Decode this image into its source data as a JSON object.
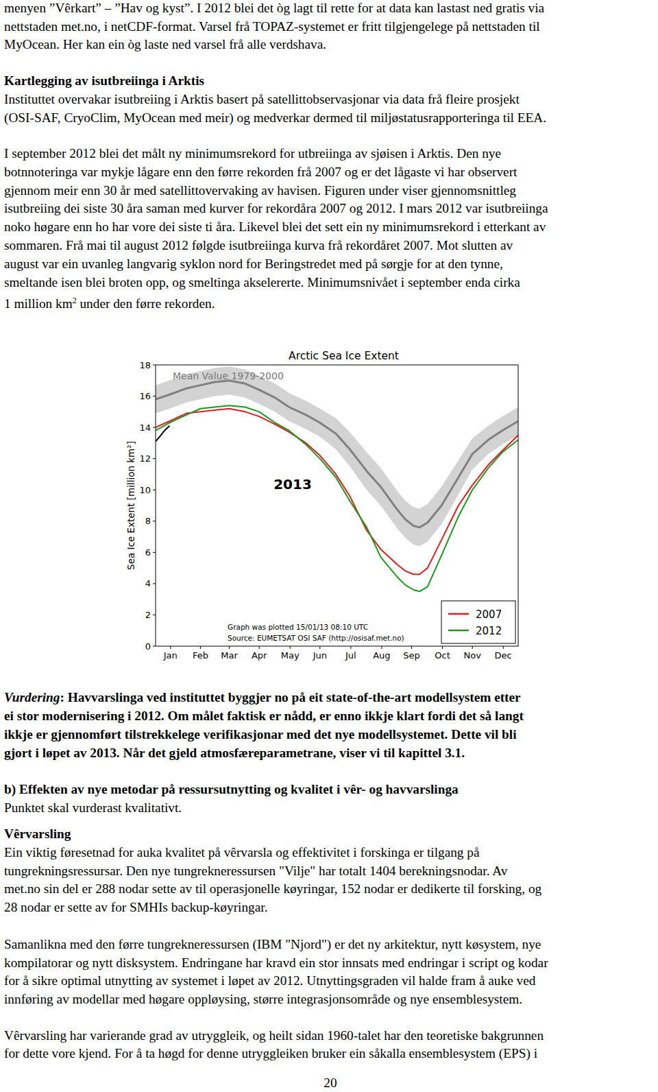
{
  "document": {
    "paragraph_1": {
      "lines": [
        "menyen ”Vêrkart” – ”Hav og kyst”. I 2012 blei det òg lagt til rette for at data kan lastast ned gratis via",
        "nettstaden met.no, i netCDF-format. Varsel frå TOPAZ-systemet er fritt tilgjengelege på nettstaden til",
        "MyOcean. Her kan ein òg laste ned varsel frå alle verdshava."
      ]
    },
    "section": {
      "heading": "Kartlegging av isutbreiinga i Arktis",
      "paragraphs": [
        {
          "lines": [
            "Instituttet overvakar isutbreiing i Arktis basert på satellittobservasjonar via data frå fleire prosjekt",
            "(OSI-SAF, CryoClim, MyOcean med meir) og medverkar dermed til miljøstatusrapporteringa til EEA."
          ]
        },
        {
          "lines": [
            "I september 2012 blei det målt ny minimumsrekord for utbreiinga av sjøisen i Arktis. Den nye",
            "botnnoteringa var mykje lågare enn den førre rekorden frå 2007 og er det lågaste vi har observert",
            "gjennom meir enn 30 år med satellittovervaking av havisen. Figuren under viser gjennomsnittleg",
            "isutbreiing dei siste 30 åra saman med kurver for rekordåra 2007 og 2012. I mars 2012 var isutbreiinga",
            "noko høgare enn ho har vore dei siste ti åra. Likevel blei det sett ein ny minimumsrekord i etterkant av",
            "sommaren. Frå mai til august 2012 følgde isutbreiinga kurva frå rekordåret 2007. Mot slutten av",
            "august var ein uvanleg langvarig syklon nord for Beringstredet med på sørgje for at den tynne,",
            "smeltande isen blei broten opp, og smeltinga akselererte. Minimumsnivået i september enda cirka"
          ],
          "last_line": {
            "text": "1 million km",
            "sup": "2",
            "after": " under den førre rekorden."
          }
        }
      ]
    },
    "assessment": {
      "label": "Vurdering",
      "lines": [
        ": Havvarslinga ved instituttet byggjer no på eit state-of-the-art modellsystem etter",
        "ei stor modernisering i 2012. Om målet faktisk er nådd, er enno ikkje klart fordi det så langt",
        "ikkje er gjennomført tilstrekkelege verifikasjonar med det nye modellsystemet. Dette vil bli",
        "gjort i løpet av 2013. Når det gjeld atmosfæreparametrane, viser vi til kapittel 3.1."
      ]
    },
    "subsection": {
      "heading": "b) Effekten av nye metodar på ressursutnytting og kvalitet i vêr- og havvarslinga",
      "note": "Punktet skal vurderast kvalitativt.",
      "subheading": "Vêrvarsling",
      "paragraphs": [
        {
          "lines": [
            "Ein viktig føresetnad for auka kvalitet på vêrvarsla og effektivitet i forskinga er tilgang på",
            "tungrekningsressursar. Den nye tungrekneressursen \"Vilje\" har totalt 1404 berekningsnodar. Av",
            "met.no sin del er 288 nodar sette av til operasjonelle køyringar, 152 nodar er dedikerte til forsking, og",
            "28 nodar er sette av for SMHIs backup-køyringar."
          ]
        },
        {
          "lines": [
            "Samanlikna med den førre tungrekneressursen (IBM \"Njord\") er det ny arkitektur, nytt køsystem, nye",
            "kompilatorar og nytt disksystem. Endringane har kravd ein stor innsats med endringar i script og kodar",
            "for å sikre optimal utnytting av systemet i løpet av 2012. Utnyttingsgraden vil halde fram å auke ved",
            "innføring av modellar med høgare oppløysing, større integrasjonsområde og nye ensemblesystem."
          ]
        },
        {
          "lines": [
            "Vêrvarsling har varierande grad av utryggleik, og heilt sidan 1960-talet har den teoretiske bakgrunnen",
            "for dette vore kjend. For å ta høgd for denne utryggleiken bruker ein såkalla ensemblesystem (EPS) i"
          ]
        }
      ]
    },
    "page_number": "20"
  },
  "chart_data": {
    "type": "line",
    "title": "Arctic Sea Ice Extent",
    "ylabel": "Sea Ice Extent [million km²]",
    "xlim": [
      1,
      365
    ],
    "xticks": [
      {
        "value": 16,
        "label": "Jan"
      },
      {
        "value": 46,
        "label": "Feb"
      },
      {
        "value": 75,
        "label": "Mar"
      },
      {
        "value": 105,
        "label": "Apr"
      },
      {
        "value": 136,
        "label": "May"
      },
      {
        "value": 166,
        "label": "Jun"
      },
      {
        "value": 197,
        "label": "Jul"
      },
      {
        "value": 228,
        "label": "Aug"
      },
      {
        "value": 258,
        "label": "Sep"
      },
      {
        "value": 289,
        "label": "Oct"
      },
      {
        "value": 319,
        "label": "Nov"
      },
      {
        "value": 350,
        "label": "Dec"
      }
    ],
    "ylim": [
      0,
      18
    ],
    "yticks": [
      0,
      2,
      4,
      6,
      8,
      10,
      12,
      14,
      16,
      18
    ],
    "grid": false,
    "legend": "lower right",
    "series": [
      {
        "name": "Mean Value 1979-2000",
        "color": "#808080",
        "x": [
          1,
          15,
          32,
          46,
          60,
          75,
          91,
          105,
          121,
          135,
          152,
          166,
          182,
          196,
          213,
          227,
          244,
          252,
          260,
          266,
          274,
          288,
          305,
          319,
          335,
          349,
          365
        ],
        "values": [
          15.8,
          16.1,
          16.5,
          16.7,
          16.9,
          17.0,
          16.8,
          16.4,
          15.9,
          15.3,
          14.8,
          14.3,
          13.6,
          12.6,
          11.2,
          10.2,
          8.7,
          8.1,
          7.7,
          7.6,
          7.9,
          9.0,
          10.8,
          12.3,
          13.2,
          13.8,
          14.4
        ],
        "upper": [
          16.7,
          17.0,
          17.4,
          17.6,
          17.8,
          17.9,
          17.7,
          17.3,
          16.8,
          16.2,
          15.7,
          15.2,
          14.6,
          13.7,
          12.4,
          11.4,
          9.9,
          9.3,
          8.9,
          8.8,
          9.1,
          10.2,
          11.9,
          13.3,
          14.1,
          14.7,
          15.3
        ],
        "lower": [
          14.9,
          15.2,
          15.6,
          15.8,
          16.0,
          16.1,
          15.9,
          15.5,
          15.0,
          14.4,
          13.9,
          13.4,
          12.6,
          11.5,
          10.0,
          9.0,
          7.5,
          6.9,
          6.5,
          6.4,
          6.7,
          7.8,
          9.7,
          11.3,
          12.3,
          12.9,
          13.5
        ]
      },
      {
        "name": "2007",
        "color": "#e41a1c",
        "x": [
          1,
          15,
          32,
          46,
          60,
          75,
          91,
          105,
          121,
          135,
          152,
          166,
          182,
          196,
          213,
          227,
          244,
          252,
          260,
          266,
          274,
          288,
          305,
          319,
          335,
          349,
          365
        ],
        "values": [
          14.0,
          14.4,
          14.9,
          15.0,
          15.1,
          15.2,
          15.0,
          14.7,
          14.2,
          13.7,
          13.0,
          12.2,
          11.0,
          9.6,
          7.4,
          6.2,
          5.2,
          4.8,
          4.6,
          4.6,
          5.0,
          6.8,
          9.0,
          10.3,
          11.6,
          12.5,
          13.5
        ]
      },
      {
        "name": "2012",
        "color": "#1a9a1a",
        "x": [
          1,
          15,
          32,
          46,
          60,
          75,
          91,
          105,
          121,
          135,
          152,
          166,
          182,
          196,
          213,
          227,
          244,
          252,
          260,
          266,
          274,
          288,
          305,
          319,
          335,
          349,
          365
        ],
        "values": [
          13.8,
          14.3,
          14.8,
          15.2,
          15.3,
          15.4,
          15.3,
          15.0,
          14.3,
          13.8,
          12.9,
          12.0,
          10.8,
          9.3,
          7.6,
          5.7,
          4.4,
          3.9,
          3.6,
          3.5,
          3.8,
          5.8,
          8.3,
          10.0,
          11.4,
          12.4,
          13.2
        ]
      },
      {
        "name": "2013",
        "color": "#000000",
        "x": [
          1,
          5,
          10,
          15
        ],
        "values": [
          13.1,
          13.4,
          13.8,
          14.1
        ]
      }
    ],
    "annotations": [
      "Graph was plotted 15/01/13 08:10 UTC",
      "Source: EUMETSAT OSI SAF (http://osisaf.met.no)"
    ]
  }
}
